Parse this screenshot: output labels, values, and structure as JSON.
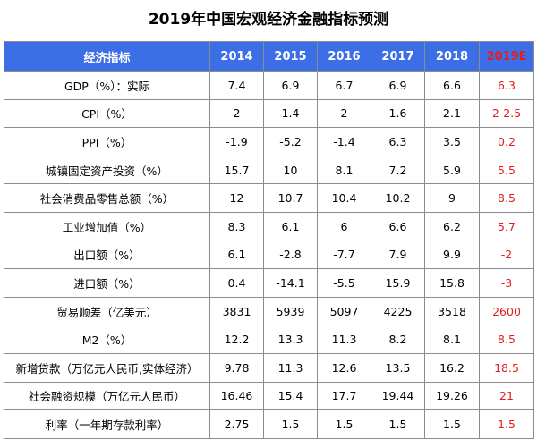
{
  "title": "2019年中国宏观经济金融指标预测",
  "table": {
    "headers": [
      "经济指标",
      "2014",
      "2015",
      "2016",
      "2017",
      "2018",
      "2019E"
    ],
    "rows": [
      [
        "GDP（%）：实际",
        "7.4",
        "6.9",
        "6.7",
        "6.9",
        "6.6",
        "6.3"
      ],
      [
        "CPI（%）",
        "2",
        "1.4",
        "2",
        "1.6",
        "2.1",
        "2-2.5"
      ],
      [
        "PPI（%）",
        "-1.9",
        "-5.2",
        "-1.4",
        "6.3",
        "3.5",
        "0.2"
      ],
      [
        "城镇固定资产投资（%）",
        "15.7",
        "10",
        "8.1",
        "7.2",
        "5.9",
        "5.5"
      ],
      [
        "社会消费品零售总额（%）",
        "12",
        "10.7",
        "10.4",
        "10.2",
        "9",
        "8.5"
      ],
      [
        "工业增加值（%）",
        "8.3",
        "6.1",
        "6",
        "6.6",
        "6.2",
        "5.7"
      ],
      [
        "出口额（%）",
        "6.1",
        "-2.8",
        "-7.7",
        "7.9",
        "9.9",
        "-2"
      ],
      [
        "进口额（%）",
        "0.4",
        "-14.1",
        "-5.5",
        "15.9",
        "15.8",
        "-3"
      ],
      [
        "贸易顺差（亿美元）",
        "3831",
        "5939",
        "5097",
        "4225",
        "3518",
        "2600"
      ],
      [
        "M2（%）",
        "12.2",
        "13.3",
        "11.3",
        "8.2",
        "8.1",
        "8.5"
      ],
      [
        "新增贷款（万亿元人民币,实体经济）",
        "9.78",
        "11.3",
        "12.6",
        "13.5",
        "16.2",
        "18.5"
      ],
      [
        "社会融资规模（万亿元人民币）",
        "16.46",
        "15.4",
        "17.7",
        "19.44",
        "19.26",
        "21"
      ],
      [
        "利率（一年期存款利率）",
        "2.75",
        "1.5",
        "1.5",
        "1.5",
        "1.5",
        "1.5"
      ]
    ]
  },
  "colors": {
    "header_bg": "#3c6fe6",
    "header_text": "#ffffff",
    "forecast_text": "#e21e1e",
    "border": "#8c8c8c"
  }
}
